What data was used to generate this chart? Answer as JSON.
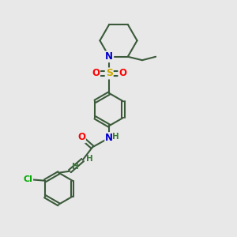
{
  "bg_color": "#e8e8e8",
  "bond_color": "#3a5a3a",
  "bond_width": 1.5,
  "atom_colors": {
    "N": "#0000cc",
    "O": "#ff0000",
    "S": "#ccaa00",
    "Cl": "#00aa00",
    "C": "#2a4a2a",
    "H": "#3a7a3a"
  },
  "font_size": 8.5,
  "fig_size": [
    3.0,
    3.0
  ],
  "dpi": 100
}
